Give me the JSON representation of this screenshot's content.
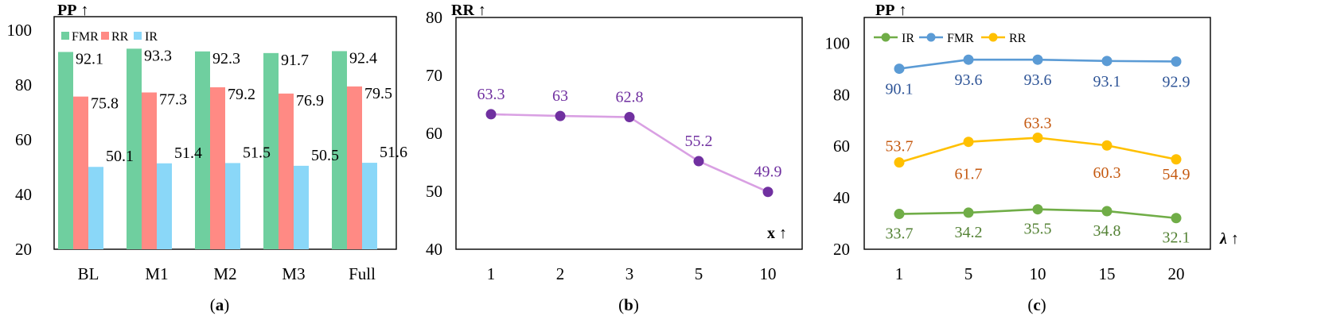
{
  "chart_data": [
    {
      "type": "bar",
      "caption": "(a)",
      "ylabel": "PP ↑",
      "categories": [
        "BL",
        "M1",
        "M2",
        "M3",
        "Full"
      ],
      "series": [
        {
          "name": "FMR",
          "values": [
            92.1,
            93.3,
            92.3,
            91.7,
            92.4
          ],
          "color": "#6fcf9f"
        },
        {
          "name": "RR",
          "values": [
            75.8,
            77.3,
            79.2,
            76.9,
            79.5
          ],
          "color": "#ff8a84"
        },
        {
          "name": "IR",
          "values": [
            50.1,
            51.4,
            51.5,
            50.5,
            51.6
          ],
          "color": "#8ad7f8"
        }
      ],
      "ylim": [
        20,
        105
      ],
      "yticks": [
        20,
        40,
        60,
        80,
        100
      ],
      "legend": "top-left",
      "grid": false,
      "data_labels": true,
      "label_color": "#000000"
    },
    {
      "type": "line",
      "caption": "(b)",
      "ylabel": "RR ↑",
      "xlabel": "x ↑",
      "x": [
        1,
        2,
        3,
        5,
        10
      ],
      "x_scale": "category",
      "series": [
        {
          "values": [
            63.3,
            63,
            62.8,
            55.2,
            49.9
          ],
          "color": "#d9a0e3",
          "marker_color": "#7030a0",
          "label_color": "#7030a0"
        }
      ],
      "ylim": [
        40,
        80
      ],
      "yticks": [
        40,
        50,
        60,
        70,
        80
      ],
      "legend": "none",
      "grid": false,
      "data_labels": true
    },
    {
      "type": "line",
      "caption": "(c)",
      "ylabel": "PP ↑",
      "xlabel": "λ ↑",
      "x": [
        1,
        5,
        10,
        15,
        20
      ],
      "x_scale": "category",
      "series": [
        {
          "name": "IR",
          "values": [
            33.7,
            34.2,
            35.5,
            34.8,
            32.1
          ],
          "color": "#70ad47",
          "label_color": "#548235"
        },
        {
          "name": "FMR",
          "values": [
            90.1,
            93.6,
            93.6,
            93.1,
            92.9
          ],
          "color": "#5b9bd5",
          "label_color": "#2f5597"
        },
        {
          "name": "RR",
          "values": [
            53.7,
            61.7,
            63.3,
            60.3,
            54.9
          ],
          "color": "#ffc000",
          "label_color": "#c55a11"
        }
      ],
      "ylim": [
        20,
        110
      ],
      "yticks": [
        20,
        40,
        60,
        80,
        100
      ],
      "legend": "top-left",
      "grid": false,
      "data_labels": true
    }
  ]
}
